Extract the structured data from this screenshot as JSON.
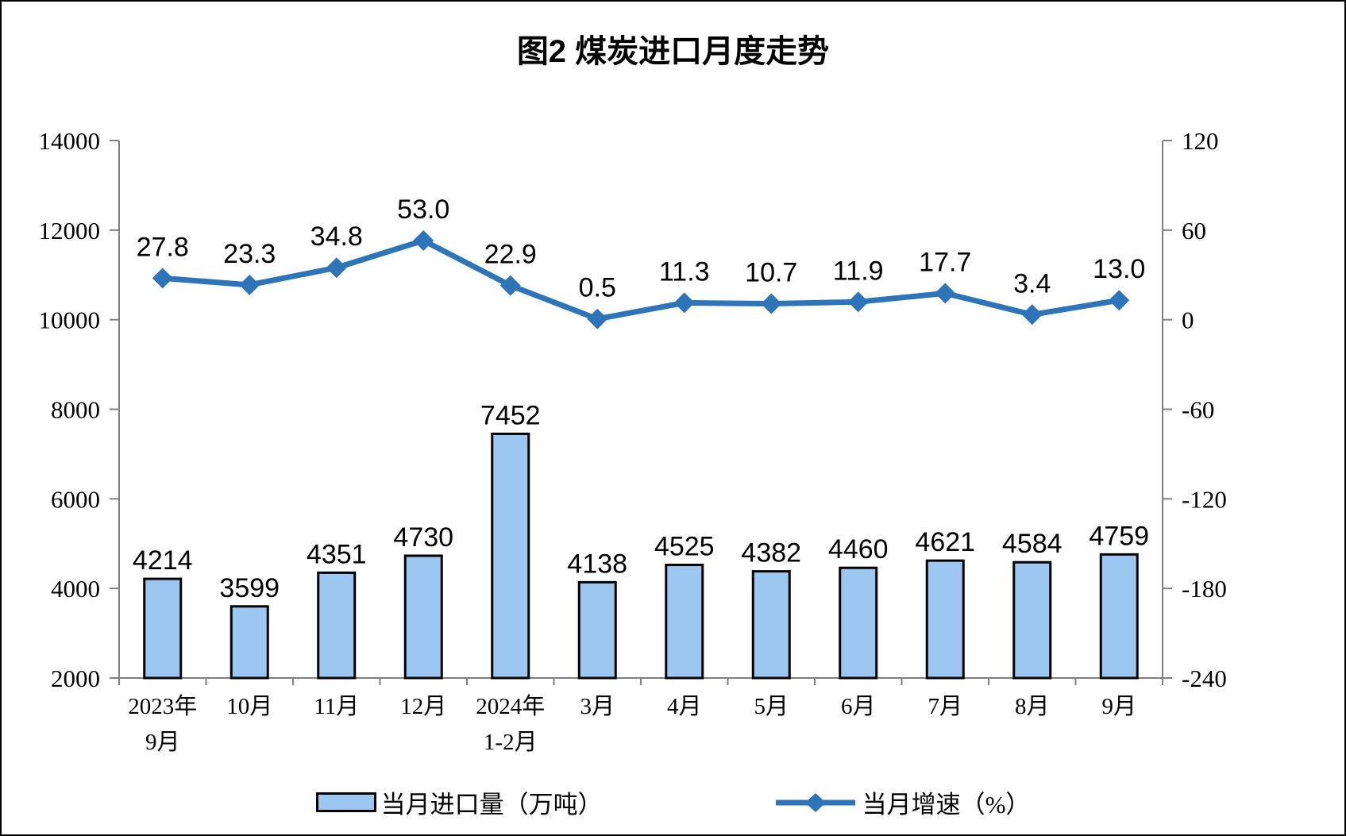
{
  "chart_data": {
    "type": "bar+line",
    "title": "图2 煤炭进口月度走势",
    "categories": [
      [
        "2023年",
        "9月"
      ],
      [
        "10月"
      ],
      [
        "11月"
      ],
      [
        "12月"
      ],
      [
        "2024年",
        "1-2月"
      ],
      [
        "3月"
      ],
      [
        "4月"
      ],
      [
        "5月"
      ],
      [
        "6月"
      ],
      [
        "7月"
      ],
      [
        "8月"
      ],
      [
        "9月"
      ]
    ],
    "series": [
      {
        "name": "当月进口量（万吨）",
        "type": "bar",
        "axis": "left",
        "values": [
          4214,
          3599,
          4351,
          4730,
          7452,
          4138,
          4525,
          4382,
          4460,
          4621,
          4584,
          4759
        ]
      },
      {
        "name": "当月增速（%）",
        "type": "line",
        "axis": "right",
        "values": [
          27.8,
          23.3,
          34.8,
          53.0,
          22.9,
          0.5,
          11.3,
          10.7,
          11.9,
          17.7,
          3.4,
          13.0
        ]
      }
    ],
    "left_axis": {
      "min": 2000,
      "max": 14000,
      "step": 2000,
      "ticks": [
        14000,
        12000,
        10000,
        8000,
        6000,
        4000,
        2000
      ]
    },
    "right_axis": {
      "min": -240,
      "max": 120,
      "step": 60,
      "ticks": [
        120,
        60,
        0,
        -60,
        -120,
        -180,
        -240
      ]
    },
    "grid": false,
    "legend_position": "bottom",
    "colors": {
      "bar_fill": "#9CC7F0",
      "bar_stroke": "#000000",
      "line": "#2E74B9",
      "axis": "#808080",
      "text": "#000000",
      "background": "#FFFFFF"
    }
  }
}
